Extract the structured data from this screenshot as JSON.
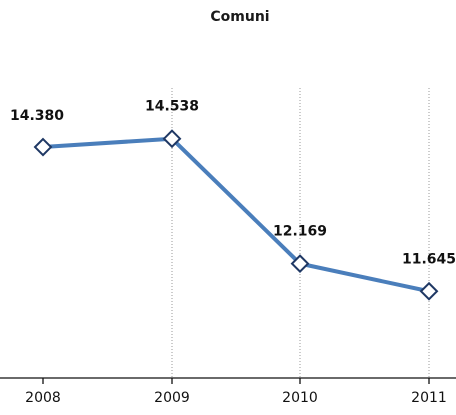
{
  "chart_data": {
    "type": "line",
    "title": "Comuni",
    "categories": [
      "2008",
      "2009",
      "2010",
      "2011"
    ],
    "series": [
      {
        "values": [
          14380,
          14538,
          12169,
          11645
        ],
        "value_labels": [
          "14.380",
          "14.538",
          "12.169",
          "11.645"
        ]
      }
    ],
    "ylim": [
      10000,
      15500
    ],
    "grid": "vertical dashed lines at categories",
    "legend": "none",
    "line_color": "#4a7ebb",
    "marker_stroke": "#1f3864",
    "marker_fill": "#ffffff",
    "marker": "diamond"
  }
}
